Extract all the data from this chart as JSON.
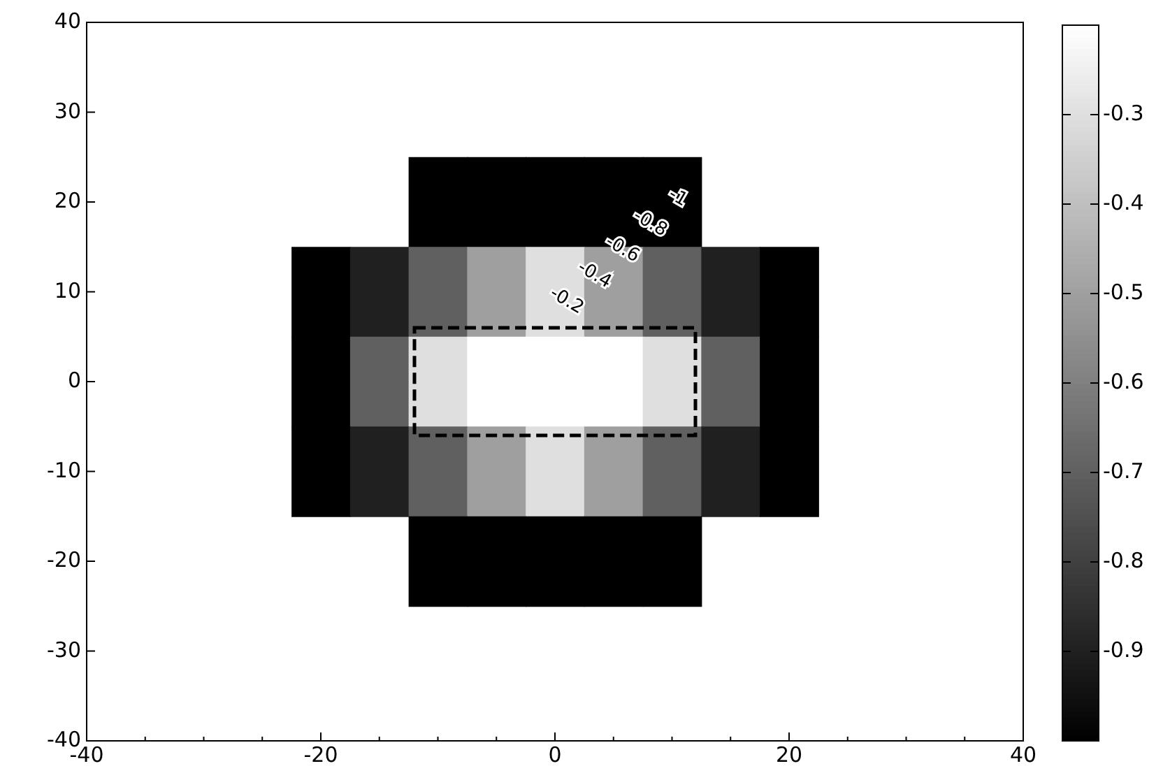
{
  "chart_data": {
    "type": "heatmap",
    "categories": [
      "-40",
      null,
      null,
      null,
      "-20",
      null,
      null,
      null,
      "0",
      null,
      null,
      null,
      "20",
      null,
      null,
      null,
      "40"
    ],
    "y_categories": [
      "40",
      "30",
      "20",
      "10",
      "0",
      "-10",
      "-20",
      "-30",
      "-40"
    ],
    "cells": [
      [
        null,
        null,
        null,
        null,
        null,
        null,
        null,
        null,
        null,
        null,
        null,
        null,
        null,
        null,
        null,
        null,
        null
      ],
      [
        null,
        null,
        null,
        null,
        null,
        null,
        null,
        null,
        null,
        null,
        null,
        null,
        null,
        null,
        null,
        null,
        null
      ],
      [
        null,
        null,
        null,
        null,
        null,
        null,
        -1,
        -1,
        -1,
        -1,
        -1,
        null,
        null,
        null,
        null,
        null,
        null
      ],
      [
        null,
        null,
        null,
        null,
        -1,
        -0.9,
        -0.7,
        -0.5,
        -0.3,
        -0.5,
        -0.7,
        -0.9,
        -1,
        null,
        null,
        null,
        null
      ],
      [
        null,
        null,
        null,
        null,
        -1,
        -0.7,
        -0.3,
        -0.2,
        -0.2,
        -0.2,
        -0.3,
        -0.7,
        -1,
        null,
        null,
        null,
        null
      ],
      [
        null,
        null,
        null,
        null,
        -1,
        -0.9,
        -0.7,
        -0.5,
        -0.3,
        -0.5,
        -0.7,
        -0.9,
        -1,
        null,
        null,
        null,
        null
      ],
      [
        null,
        null,
        null,
        null,
        null,
        null,
        -1,
        -1,
        -1,
        -1,
        -1,
        null,
        null,
        null,
        null,
        null,
        null
      ],
      [
        null,
        null,
        null,
        null,
        null,
        null,
        null,
        null,
        null,
        null,
        null,
        null,
        null,
        null,
        null,
        null,
        null
      ],
      [
        null,
        null,
        null,
        null,
        null,
        null,
        null,
        null,
        null,
        null,
        null,
        null,
        null,
        null,
        null,
        null,
        null
      ]
    ],
    "clim": [
      -1,
      -0.2
    ],
    "cticks": [
      -0.3,
      -0.4,
      -0.5,
      -0.6,
      -0.7,
      -0.8,
      -0.9
    ],
    "annotations": [
      "-1",
      "-0.8",
      "-0.6",
      "-0.4",
      "-0.2"
    ],
    "grid": false
  }
}
